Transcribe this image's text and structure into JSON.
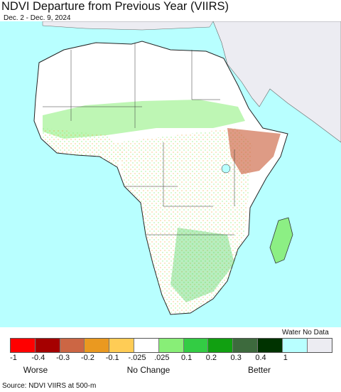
{
  "header": {
    "title": "NDVI Departure from Previous Year (VIIRS)",
    "subtitle": "Dec. 2 - Dec. 9, 2024"
  },
  "map": {
    "ocean_color": "#b8ffff",
    "nodata_color": "#ececf2",
    "land_neutral_color": "#ffffff"
  },
  "legend": {
    "water_no_data_label": "Water No Data",
    "colors": [
      "#ff0000",
      "#a50000",
      "#cc6644",
      "#ea9920",
      "#ffcc55",
      "#ffffff",
      "#88ee77",
      "#33cc44",
      "#11a011",
      "#3d6a3d",
      "#003300",
      "#b8ffff",
      "#ececf2"
    ],
    "ticks": [
      "-1",
      "-0.4",
      "-0.3",
      "-0.2",
      "-0.1",
      "-.025",
      ".025",
      "0.1",
      "0.2",
      "0.3",
      "0.4",
      "1"
    ],
    "categories": [
      "Worse",
      "No Change",
      "Better"
    ]
  },
  "footer": {
    "source": "Source: NDVI VIIRS at 500-m"
  }
}
